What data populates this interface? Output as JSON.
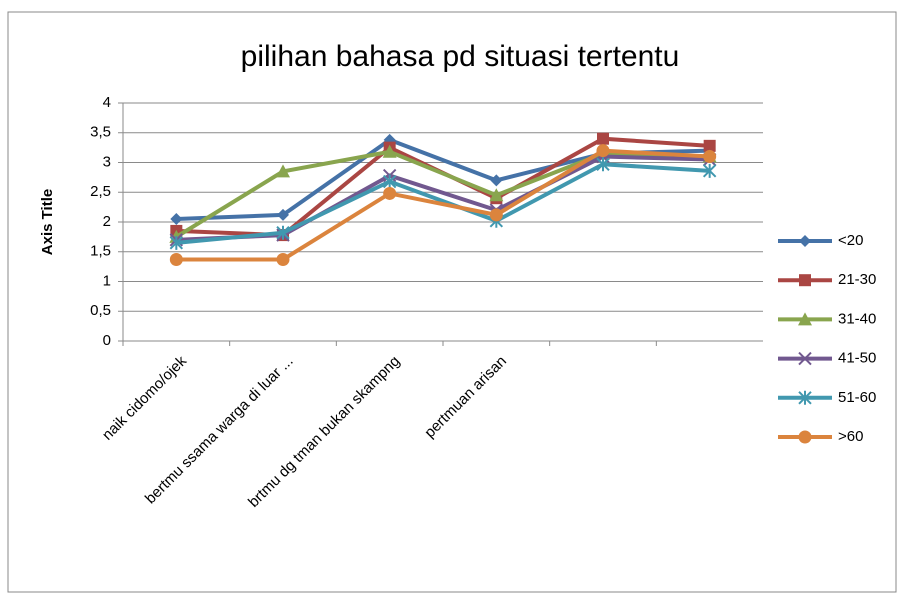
{
  "chart_data": {
    "type": "line",
    "title": "pilihan bahasa pd situasi tertentu",
    "y_label": "Axis Title",
    "categories": [
      "naik cidomo/ojek",
      "bertmu ssama warga di luar ...",
      "brtmu dg tman bukan skampng",
      "pertmuan arisan",
      null,
      null
    ],
    "series": [
      {
        "name": "<20",
        "color": "#4572a7",
        "marker": "diamond",
        "values": [
          2.05,
          2.12,
          3.38,
          2.7,
          3.15,
          3.2
        ]
      },
      {
        "name": "21-30",
        "color": "#aa4643",
        "marker": "square",
        "values": [
          1.85,
          1.78,
          3.25,
          2.4,
          3.4,
          3.28
        ]
      },
      {
        "name": "31-40",
        "color": "#89a54e",
        "marker": "triangle",
        "values": [
          1.75,
          2.85,
          3.18,
          2.45,
          3.15,
          3.1
        ]
      },
      {
        "name": "41-50",
        "color": "#71588f",
        "marker": "x",
        "values": [
          1.7,
          1.78,
          2.78,
          2.2,
          3.1,
          3.05
        ]
      },
      {
        "name": "51-60",
        "color": "#4198af",
        "marker": "star",
        "values": [
          1.65,
          1.82,
          2.68,
          2.02,
          2.97,
          2.86
        ]
      },
      {
        "name": ">60",
        "color": "#db843d",
        "marker": "circle",
        "values": [
          1.37,
          1.37,
          2.48,
          2.12,
          3.2,
          3.1
        ]
      }
    ],
    "ylim": [
      0,
      4
    ],
    "yticks": [
      0,
      {
        "value": 0.5,
        "label": "0,5"
      },
      1,
      {
        "value": 1.5,
        "label": "1,5"
      },
      2,
      {
        "value": 2.5,
        "label": "2,5"
      },
      3,
      {
        "value": 3.5,
        "label": "3,5"
      },
      4
    ],
    "grid": true,
    "legend": "right"
  }
}
